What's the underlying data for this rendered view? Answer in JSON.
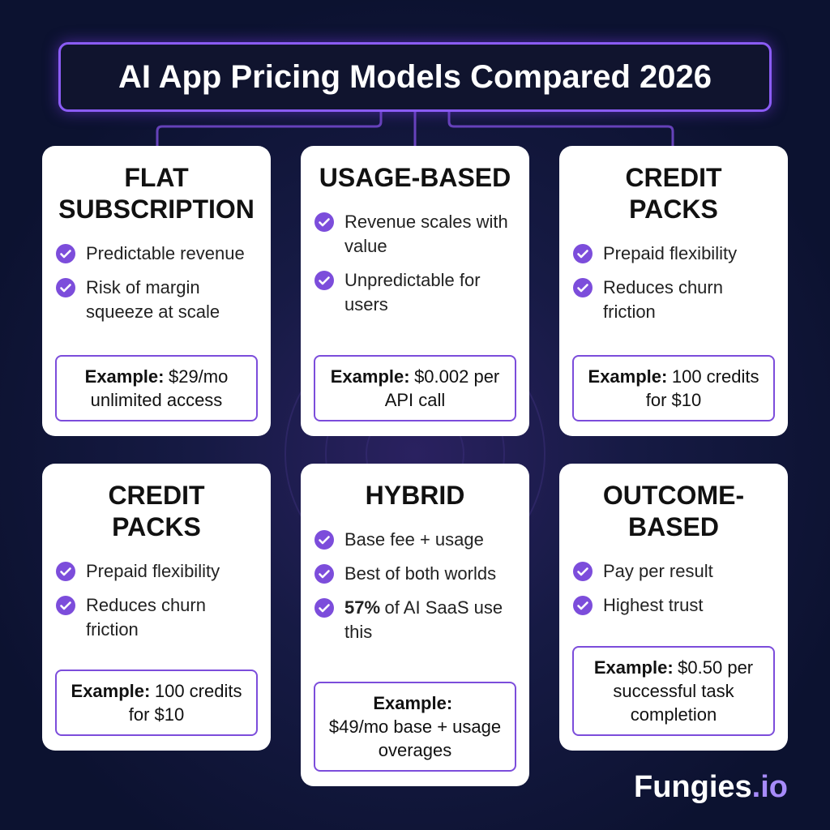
{
  "header": {
    "title": "AI App Pricing Models Compared 2026"
  },
  "cards": [
    {
      "title": [
        "FLAT",
        "SUBSCRIPTION"
      ],
      "points": [
        {
          "text": "Predictable revenue"
        },
        {
          "text": "Risk of margin squeeze at scale"
        }
      ],
      "example": {
        "label": "Example:",
        "text": "$29/mo unlimited access"
      }
    },
    {
      "title": [
        "USAGE-BASED"
      ],
      "points": [
        {
          "text": "Revenue scales with value"
        },
        {
          "text": "Unpredictable for users"
        }
      ],
      "example": {
        "label": "Example:",
        "text": "$0.002 per API call"
      }
    },
    {
      "title": [
        "CREDIT",
        "PACKS"
      ],
      "points": [
        {
          "text": "Prepaid flexibility"
        },
        {
          "text": "Reduces churn friction"
        }
      ],
      "example": {
        "label": "Example:",
        "text": "100 credits for $10"
      }
    },
    {
      "title": [
        "CREDIT",
        "PACKS"
      ],
      "points": [
        {
          "text": "Prepaid flexibility"
        },
        {
          "text": "Reduces churn friction"
        }
      ],
      "example": {
        "label": "Example:",
        "text": "100 credits for $10"
      }
    },
    {
      "title": [
        "HYBRID"
      ],
      "points": [
        {
          "text": "Base fee + usage"
        },
        {
          "text": "Best of both worlds"
        },
        {
          "bold": "57%",
          "text": "of AI SaaS use this"
        }
      ],
      "example": {
        "label": "Example:",
        "text": "$49/mo base + usage overages"
      }
    },
    {
      "title": [
        "OUTCOME-",
        "BASED"
      ],
      "points": [
        {
          "text": "Pay per result"
        },
        {
          "text": "Highest trust"
        }
      ],
      "example": {
        "label": "Example:",
        "text": "$0.50 per successful task completion"
      }
    }
  ],
  "brand": {
    "name": "Fungies",
    "suffix": ".io"
  }
}
